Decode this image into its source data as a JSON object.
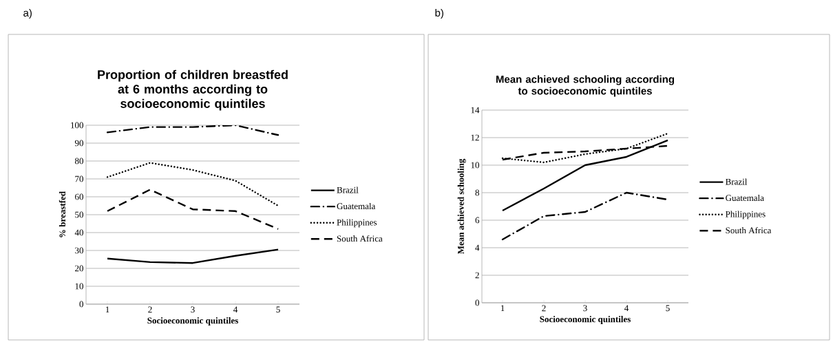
{
  "chart_data": [
    {
      "type": "line",
      "title": "Proportion of children breastfed at 6 months according to socioeconomic quintiles",
      "xlabel": "Socioeconomic quintiles",
      "ylabel": "% breastfed",
      "annotations": [
        "a)"
      ],
      "categories": [
        "1",
        "2",
        "3",
        "4",
        "5"
      ],
      "ylim": [
        0,
        100
      ],
      "yticks": [
        0,
        10,
        20,
        30,
        40,
        50,
        60,
        70,
        80,
        90,
        100
      ],
      "grid": "y",
      "legend": "right",
      "series": [
        {
          "name": "Brazil",
          "color": "#000000",
          "line_style": "solid",
          "values": [
            25.5,
            23.5,
            23,
            27,
            30.5
          ]
        },
        {
          "name": "Guatemala",
          "color": "#000000",
          "line_style": "dashdot",
          "values": [
            96,
            99,
            99,
            100,
            94.5
          ]
        },
        {
          "name": "Philippines",
          "color": "#000000",
          "line_style": "dotted",
          "values": [
            71,
            79,
            75,
            69,
            55
          ]
        },
        {
          "name": "South Africa",
          "color": "#000000",
          "line_style": "dashed",
          "values": [
            52,
            64,
            53,
            52,
            42
          ]
        }
      ]
    },
    {
      "type": "line",
      "title": "Mean achieved schooling according to socioeconomic quintiles",
      "xlabel": "Socioeconomic quintiles",
      "ylabel": "Mean achieved schooling",
      "annotations": [
        "b)"
      ],
      "categories": [
        "1",
        "2",
        "3",
        "4",
        "5"
      ],
      "ylim": [
        0,
        14
      ],
      "yticks": [
        0,
        2,
        4,
        6,
        8,
        10,
        12,
        14
      ],
      "grid": "y",
      "legend": "right",
      "series": [
        {
          "name": "Brazil",
          "color": "#000000",
          "line_style": "solid",
          "values": [
            6.7,
            8.3,
            10,
            10.6,
            11.8
          ]
        },
        {
          "name": "Guatemala",
          "color": "#000000",
          "line_style": "dashdot",
          "values": [
            4.6,
            6.3,
            6.6,
            8.0,
            7.5
          ]
        },
        {
          "name": "Philippines",
          "color": "#000000",
          "line_style": "dotted",
          "values": [
            10.5,
            10.2,
            10.8,
            11.2,
            12.3
          ]
        },
        {
          "name": "South Africa",
          "color": "#000000",
          "line_style": "dashed",
          "values": [
            10.4,
            10.9,
            11.0,
            11.2,
            11.4
          ]
        }
      ]
    }
  ]
}
